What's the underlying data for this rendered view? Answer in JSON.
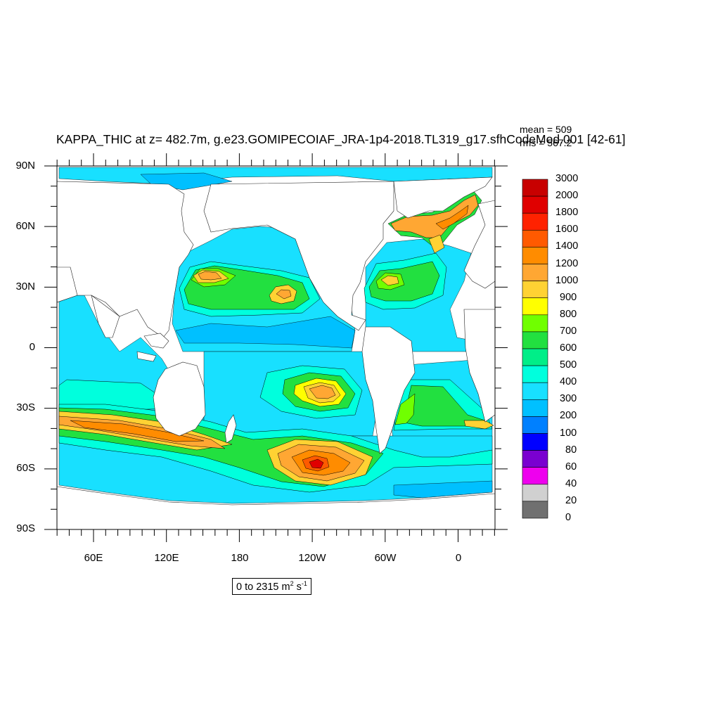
{
  "title": "KAPPA_THIC at z= 482.7m, g.e23.GOMIPECOIAF_JRA-1p4-2018.TL319_g17.sfhCodeMod.001 [42-61]",
  "stats": {
    "mean": "mean = 509",
    "rms": "rms = 567.2"
  },
  "range": {
    "text": "0 to 2315 m",
    "unit1_sup": "2",
    "unit2": " s",
    "unit2_sup": "-1"
  },
  "lat_labels": [
    "90N",
    "60N",
    "30N",
    "0",
    "30S",
    "60S",
    "90S"
  ],
  "lon_labels": [
    "60E",
    "120E",
    "180",
    "120W",
    "60W",
    "0"
  ],
  "colorbar": {
    "labels": [
      "3000",
      "2000",
      "1800",
      "1600",
      "1400",
      "1200",
      "1000",
      "900",
      "800",
      "700",
      "600",
      "500",
      "400",
      "300",
      "200",
      "100",
      "80",
      "60",
      "40",
      "20",
      "0"
    ],
    "colors": [
      "#c80000",
      "#e00000",
      "#ff2200",
      "#ff5a00",
      "#ff8c00",
      "#ffa733",
      "#ffd233",
      "#ffff00",
      "#70ff00",
      "#22e040",
      "#00ee88",
      "#00ffdd",
      "#18e0ff",
      "#00c0ff",
      "#0080ff",
      "#0000ff",
      "#7a00d0",
      "#ee00ee",
      "#d0d0d0",
      "#707070"
    ]
  },
  "colors": {
    "land": "#ffffff",
    "ocean": "#18e0ff",
    "frame": "#000000"
  }
}
